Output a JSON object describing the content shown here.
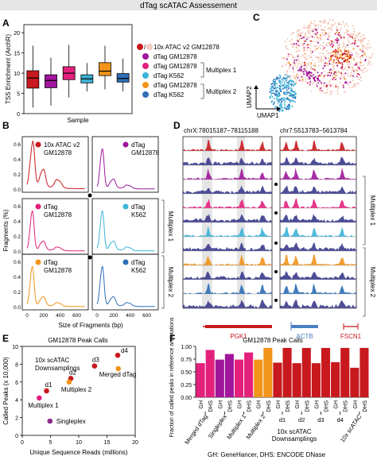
{
  "header": {
    "title": "dTag scATAC Assessement"
  },
  "colors": {
    "atac": "#c8191e",
    "dtag_gm": "#a0159b",
    "mp1_gm": "#e4207d",
    "mp1_k562": "#3cb3d8",
    "mp2_gm": "#f29419",
    "mp2_k562": "#2e6fb7",
    "header_bg": "#e6e6e6",
    "singleplex": "#8a2a8c"
  },
  "panelA": {
    "letter": "A",
    "ylabel": "TSS Enrichment (ArchR)",
    "xlabel": "Sample",
    "yticks": [
      "0",
      "5",
      "10",
      "15",
      "20"
    ],
    "legend": [
      "10x ATAC v2 GM12878",
      "dTag GM12878",
      "dTag GM12878",
      "dTag K562",
      "dTag GM12878",
      "dTag K562"
    ],
    "brackets": [
      "Multiplex 1",
      "Multiplex 2"
    ],
    "chart_data": {
      "type": "box",
      "ylim": [
        0,
        22
      ],
      "series": [
        {
          "name": "10x ATAC v2 GM12878",
          "q1": 6.3,
          "median": 8.8,
          "q3": 10.6,
          "whisker_low": 1.5,
          "whisker_high": 16.8
        },
        {
          "name": "dTag GM12878",
          "q1": 6.4,
          "median": 8.2,
          "q3": 9.6,
          "whisker_low": 2.0,
          "whisker_high": 13.8
        },
        {
          "name": "dTag GM12878 (Multiplex 1)",
          "q1": 8.4,
          "median": 10.0,
          "q3": 11.6,
          "whisker_low": 4.0,
          "whisker_high": 17.0
        },
        {
          "name": "dTag K562 (Multiplex 1)",
          "q1": 7.6,
          "median": 8.6,
          "q3": 9.6,
          "whisker_low": 5.5,
          "whisker_high": 12.5
        },
        {
          "name": "dTag GM12878 (Multiplex 2)",
          "q1": 9.4,
          "median": 10.5,
          "q3": 12.6,
          "whisker_low": 6.0,
          "whisker_high": 16.8
        },
        {
          "name": "dTag K562 (Multiplex 2)",
          "q1": 7.8,
          "median": 8.7,
          "q3": 9.9,
          "whisker_low": 5.5,
          "whisker_high": 13.6
        }
      ]
    }
  },
  "panelC": {
    "letter": "C",
    "xlabel": "UMAP1",
    "ylabel": "UMAP2"
  },
  "panelB": {
    "letter": "B",
    "ylabel": "Fragments (%)",
    "xlabel": "Size of Fragments (bp)",
    "yticks_left": [
      "0.0",
      "0.2",
      "0.4",
      "0.6"
    ],
    "yticks_right": [
      "0.0",
      "0.3",
      "0.6"
    ],
    "yticks_bottom_left": [
      "0.0",
      "0.2",
      "0.4",
      "0.6"
    ],
    "xticks": [
      "0",
      "200",
      "400",
      "600"
    ],
    "plots": [
      {
        "label1": "10x ATAC v2",
        "label2": "GM12878"
      },
      {
        "label1": "dTag",
        "label2": "GM12878"
      },
      {
        "label1": "dTag",
        "label2": "GM12878"
      },
      {
        "label1": "dTag",
        "label2": "K562"
      },
      {
        "label1": "dTag",
        "label2": "GM12878"
      },
      {
        "label1": "dTag",
        "label2": "K562"
      }
    ],
    "side_labels": [
      "Multiplex 1",
      "Multiplex 2"
    ]
  },
  "panelD": {
    "letter": "D",
    "locus1": "chrX:78015187−78115188",
    "locus2": "chr7:5513783−5613784",
    "genes": [
      "PGK1",
      "ACTB",
      "FSCN1"
    ],
    "side_labels": [
      "Multiplex 1",
      "Multiplex 2"
    ]
  },
  "panelE": {
    "letter": "E",
    "title": "GM12878 Peak Calls",
    "ylabel": "Called Peaks (x 10,000)",
    "xlabel": "Unique Sequence Reads (millions)",
    "annotation": "10x scATAC\nDownsamplings",
    "xticks": [
      "0",
      "5",
      "10",
      "15",
      "20"
    ],
    "yticks": [
      "0",
      "2",
      "4",
      "6",
      "8",
      "10"
    ],
    "chart_data": {
      "type": "scatter",
      "xlim": [
        0,
        20
      ],
      "ylim": [
        0,
        10
      ],
      "points": [
        {
          "label": "d1",
          "x": 4.3,
          "y": 5.0
        },
        {
          "label": "d2",
          "x": 8.6,
          "y": 6.4
        },
        {
          "label": "d3",
          "x": 12.8,
          "y": 7.8
        },
        {
          "label": "d4",
          "x": 16.9,
          "y": 9.0
        },
        {
          "label": "Multiplex 1",
          "x": 3.0,
          "y": 4.2
        },
        {
          "label": "Multiplex 2",
          "x": 8.3,
          "y": 6.0
        },
        {
          "label": "Merged dTag",
          "x": 17.0,
          "y": 7.5
        },
        {
          "label": "Singleplex",
          "x": 4.9,
          "y": 1.6
        }
      ]
    }
  },
  "panelF": {
    "letter": "F",
    "title": "GM12878 Peak Calls",
    "ylabel": "Fraction of called peaks in reference annotations",
    "yticks": [
      "0.00",
      "0.25",
      "0.50",
      "0.75",
      "1.00"
    ],
    "group_labels": [
      "Merged dTag",
      "Singleplex",
      "Multiplex 1",
      "Multiplex 2",
      "d1",
      "d2",
      "d3",
      "d4",
      "10x scATAC"
    ],
    "downsample_label": "10x scATAC\nDownsamplings",
    "footnote": "GH: GeneHancer, DHS: ENCODE DNase",
    "chart_data": {
      "type": "bar",
      "ylim": [
        0,
        1
      ],
      "categories": [
        "GH",
        "DHS",
        "GH",
        "DHS",
        "GH",
        "DHS",
        "GH",
        "DHS",
        "GH",
        "DHS",
        "GH",
        "DHS",
        "GH",
        "DHS",
        "GH",
        "DHS",
        "GH",
        "DHS"
      ],
      "values": [
        0.67,
        0.93,
        0.74,
        0.85,
        0.74,
        0.88,
        0.74,
        0.97,
        0.68,
        0.97,
        0.67,
        0.97,
        0.67,
        0.97,
        0.69,
        0.97,
        0.58,
        0.97
      ],
      "colors": [
        "#e4207d",
        "#e4207d",
        "#a0159b",
        "#a0159b",
        "#e4207d",
        "#e4207d",
        "#f29419",
        "#f29419",
        "#c8191e",
        "#c8191e",
        "#c8191e",
        "#c8191e",
        "#c8191e",
        "#c8191e",
        "#c8191e",
        "#c8191e",
        "#c8191e",
        "#c8191e"
      ]
    }
  }
}
